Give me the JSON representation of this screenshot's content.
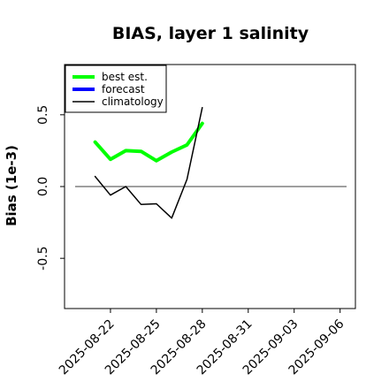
{
  "chart_data": {
    "type": "line",
    "title": "BIAS, layer 1 salinity",
    "xlabel": "",
    "ylabel": "Bias (1e-3)",
    "xlim": [
      "2025-08-19",
      "2025-09-07"
    ],
    "ylim": [
      -0.85,
      0.85
    ],
    "yticks": [
      -0.5,
      0.0,
      0.5
    ],
    "ytick_labels": [
      "-0.5",
      "0.0",
      "0.5"
    ],
    "xticks": [
      "2025-08-22",
      "2025-08-25",
      "2025-08-28",
      "2025-08-31",
      "2025-09-03",
      "2025-09-06"
    ],
    "highlighted_xtick": "2025-08-28",
    "highlight_color": "#228B22",
    "grid": false,
    "legend_position": "top-left",
    "reference_line": {
      "y": 0.0,
      "color": "#666666"
    },
    "series": [
      {
        "name": "best est.",
        "color": "#00ff00",
        "width": 4,
        "x": [
          "2025-08-21",
          "2025-08-22",
          "2025-08-23",
          "2025-08-24",
          "2025-08-25",
          "2025-08-26",
          "2025-08-27",
          "2025-08-28"
        ],
        "y": [
          0.31,
          0.19,
          0.25,
          0.245,
          0.18,
          0.24,
          0.29,
          0.44
        ]
      },
      {
        "name": "forecast",
        "color": "#0000ff",
        "width": 4,
        "x": [],
        "y": []
      },
      {
        "name": "climatology",
        "color": "#000000",
        "width": 1.5,
        "x": [
          "2025-08-21",
          "2025-08-22",
          "2025-08-23",
          "2025-08-24",
          "2025-08-25",
          "2025-08-26",
          "2025-08-27",
          "2025-08-28"
        ],
        "y": [
          0.07,
          -0.06,
          0.0,
          -0.125,
          -0.12,
          -0.22,
          0.05,
          0.55
        ]
      }
    ]
  }
}
